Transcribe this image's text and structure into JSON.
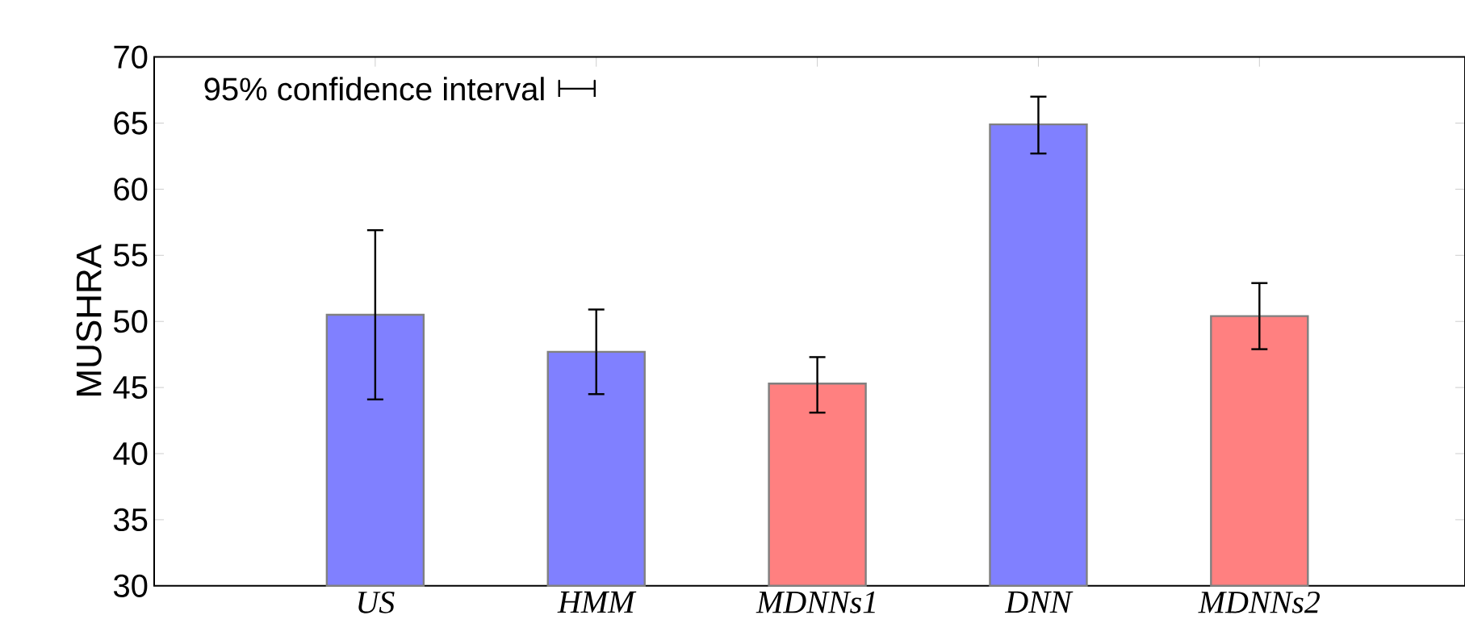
{
  "chart_data": {
    "type": "bar",
    "ylabel": "MUSHRA",
    "categories": [
      "US",
      "HMM",
      "MDNNs1",
      "DNN",
      "MDNNs2"
    ],
    "values": [
      50.5,
      47.7,
      45.3,
      64.9,
      50.4
    ],
    "colors": [
      "#8080ff",
      "#8080ff",
      "#ff8080",
      "#8080ff",
      "#ff8080"
    ],
    "errors": [
      [
        44.1,
        56.9
      ],
      [
        44.5,
        50.9
      ],
      [
        43.1,
        47.3
      ],
      [
        62.7,
        67.0
      ],
      [
        47.9,
        52.9
      ]
    ],
    "ylim": [
      30,
      70
    ],
    "yticks": [
      30,
      35,
      40,
      45,
      50,
      55,
      60,
      65,
      70
    ],
    "annotations": [
      "95% confidence interval"
    ],
    "grid": false
  }
}
